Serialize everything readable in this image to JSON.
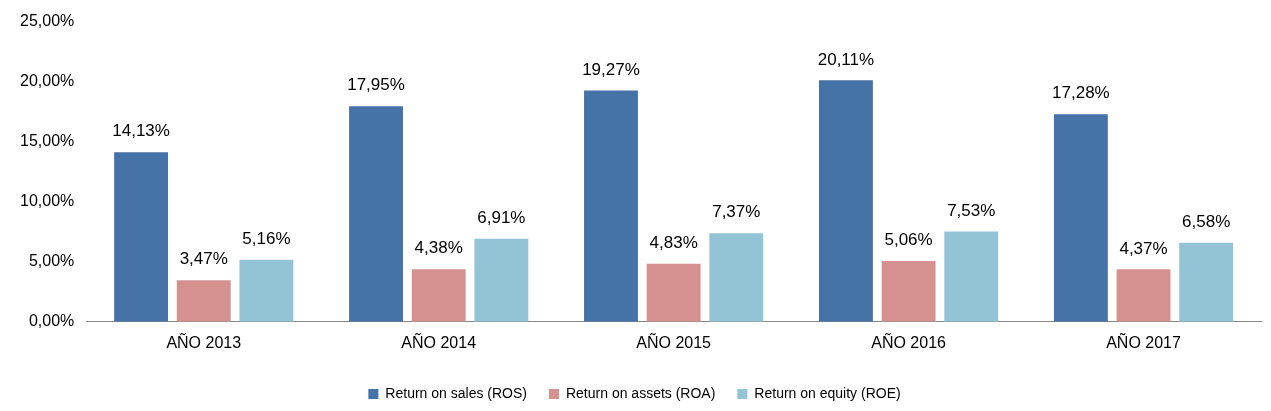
{
  "chart_data": {
    "type": "bar",
    "categories": [
      "AÑO 2013",
      "AÑO 2014",
      "AÑO 2015",
      "AÑO 2016",
      "AÑO 2017"
    ],
    "series": [
      {
        "name": "Return on sales (ROS)",
        "color": "#4572a7",
        "values": [
          14.13,
          17.95,
          19.27,
          20.11,
          17.28
        ],
        "value_labels": [
          "14,13%",
          "17,95%",
          "19,27%",
          "20,11%",
          "17,28%"
        ]
      },
      {
        "name": "Return on assets (ROA)",
        "color": "#d4918f",
        "values": [
          3.47,
          4.38,
          4.83,
          5.06,
          4.37
        ],
        "value_labels": [
          "3,47%",
          "4,38%",
          "4,83%",
          "5,06%",
          "4,37%"
        ]
      },
      {
        "name": "Return on equity (ROE)",
        "color": "#93c4d5",
        "values": [
          5.16,
          6.91,
          7.37,
          7.53,
          6.58
        ],
        "value_labels": [
          "5,16%",
          "6,91%",
          "7,37%",
          "7,53%",
          "6,58%"
        ]
      }
    ],
    "ylim": [
      0,
      25
    ],
    "yticks": [
      {
        "value": 0,
        "label": "0,00%"
      },
      {
        "value": 5,
        "label": "5,00%"
      },
      {
        "value": 10,
        "label": "10,00%"
      },
      {
        "value": 15,
        "label": "15,00%"
      },
      {
        "value": 20,
        "label": "20,00%"
      },
      {
        "value": 25,
        "label": "25,00%"
      }
    ],
    "grid": false,
    "legend": "bottom"
  }
}
